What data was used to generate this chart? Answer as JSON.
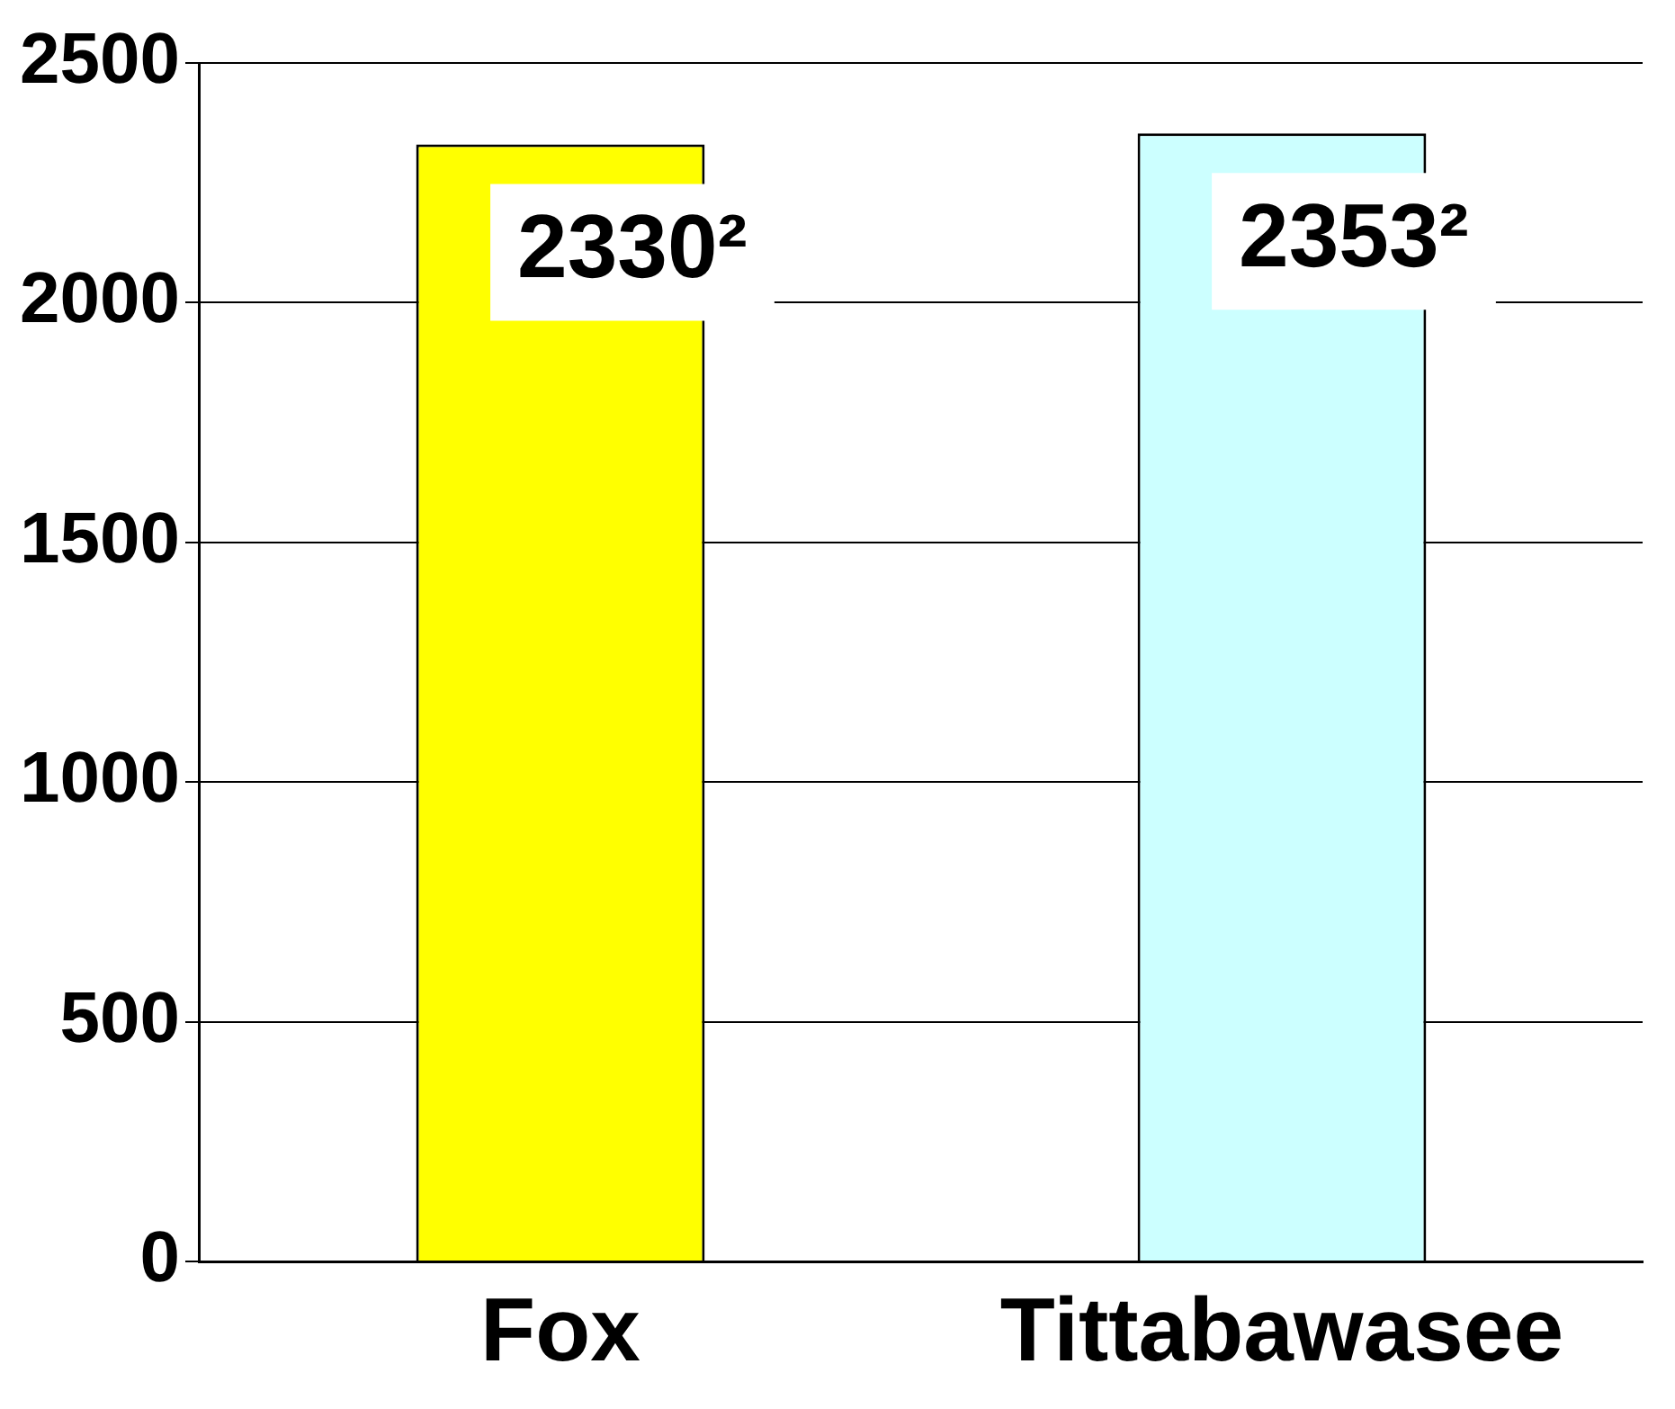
{
  "chart_data": {
    "type": "bar",
    "categories": [
      "Fox",
      "Tittabawasee"
    ],
    "values": [
      2330,
      2353
    ],
    "colors": [
      "#ffff00",
      "#ccffff"
    ],
    "value_labels": [
      "2330²",
      "2353²"
    ],
    "ylim": [
      0,
      2500
    ],
    "yticks": [
      0,
      500,
      1000,
      1500,
      2000,
      2500
    ],
    "grid": "y"
  }
}
